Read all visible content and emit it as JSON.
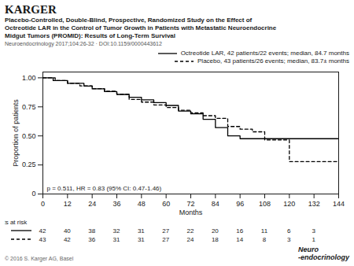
{
  "chart_data": {
    "type": "step",
    "header": "KARGER",
    "title": [
      "Placebo-Controlled, Double-Blind, Prospective, Randomized Study on the Effect of",
      "Octreotide LAR in the Control of Tumor Growth in Patients with Metastatic Neuroendocrine",
      "Midgut Tumors (PROMID): Results of Long-Term Survival"
    ],
    "subtitle": "Neuroendocrinology 2017;104:26-32 · DOI:10.1159/0000443612",
    "xlabel": "Months",
    "ylabel": "Proportion of patients",
    "xlim": [
      0,
      144
    ],
    "ylim": [
      0,
      1.05
    ],
    "xticks": [
      0,
      12,
      24,
      36,
      48,
      60,
      72,
      84,
      96,
      108,
      120,
      132,
      144
    ],
    "yticks": [
      0,
      0.25,
      {
        "value": 0.5,
        "label": "0.50"
      },
      0.75,
      {
        "value": 1,
        "label": "1.00"
      }
    ],
    "legend": "top",
    "series": [
      {
        "name": "Octreotide LAR, 42 patients/22 events; median, 84.7 months",
        "color": "#000000",
        "line_style": "solid",
        "x": [
          0,
          5,
          12,
          20,
          24,
          30,
          36,
          42,
          48,
          54,
          60,
          66,
          72,
          78,
          84,
          90,
          96,
          108,
          120,
          144
        ],
        "values": [
          1.0,
          0.976,
          0.952,
          0.929,
          0.905,
          0.881,
          0.857,
          0.833,
          0.81,
          0.786,
          0.762,
          0.714,
          0.69,
          0.643,
          0.571,
          0.5,
          0.476,
          0.476,
          0.476,
          0.476
        ],
        "at_risk": [
          42,
          40,
          38,
          32,
          31,
          27,
          22,
          20,
          16,
          11,
          6,
          3
        ]
      },
      {
        "name": "Placebo, 43 patients/26 events; median, 83.7± months",
        "color": "#000000",
        "line_style": "dashed",
        "x": [
          0,
          6,
          12,
          18,
          24,
          30,
          36,
          42,
          48,
          54,
          60,
          66,
          72,
          78,
          84,
          90,
          96,
          102,
          108,
          120,
          144
        ],
        "values": [
          1.0,
          0.977,
          0.953,
          0.93,
          0.907,
          0.884,
          0.86,
          0.814,
          0.791,
          0.767,
          0.744,
          0.721,
          0.698,
          0.674,
          0.651,
          0.581,
          0.558,
          0.535,
          0.465,
          0.279,
          0.279
        ],
        "at_risk": [
          43,
          42,
          36,
          31,
          31,
          27,
          24,
          18,
          14,
          8,
          3,
          1
        ]
      }
    ],
    "annotation": "p = 0.511, HR = 0.83 (95% CI: 0.47-1.46)",
    "at_risk_label": "Patients at risk",
    "at_risk_x": [
      0,
      12,
      24,
      36,
      48,
      60,
      72,
      84,
      96,
      108,
      120,
      132
    ],
    "footer": "© 2016 S. Karger AG, Basel",
    "logo": [
      "Neuro",
      "-endocrinology"
    ]
  }
}
